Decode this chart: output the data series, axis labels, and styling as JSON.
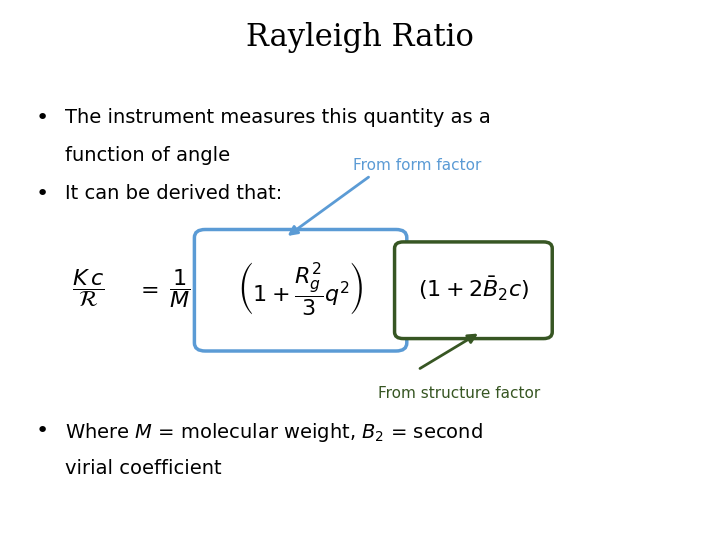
{
  "title": "Rayleigh Ratio",
  "title_fontsize": 22,
  "title_color": "#000000",
  "background_color": "#ffffff",
  "bullet1_line1": "The instrument measures this quantity as a",
  "bullet1_line2": "function of angle",
  "bullet2": "It can be derived that:",
  "bullet3_line1": "Where $M$ = molecular weight, $B_2$ = second",
  "bullet3_line2": "virial coefficient",
  "bullet_fontsize": 14,
  "from_form_factor": "From form factor",
  "from_structure_factor": "From structure factor",
  "annotation_color_blue": "#5b9bd5",
  "box_blue_color": "#5b9bd5",
  "box_green_color": "#375623",
  "annotation_color_green": "#375623",
  "eq_fontsize": 16
}
